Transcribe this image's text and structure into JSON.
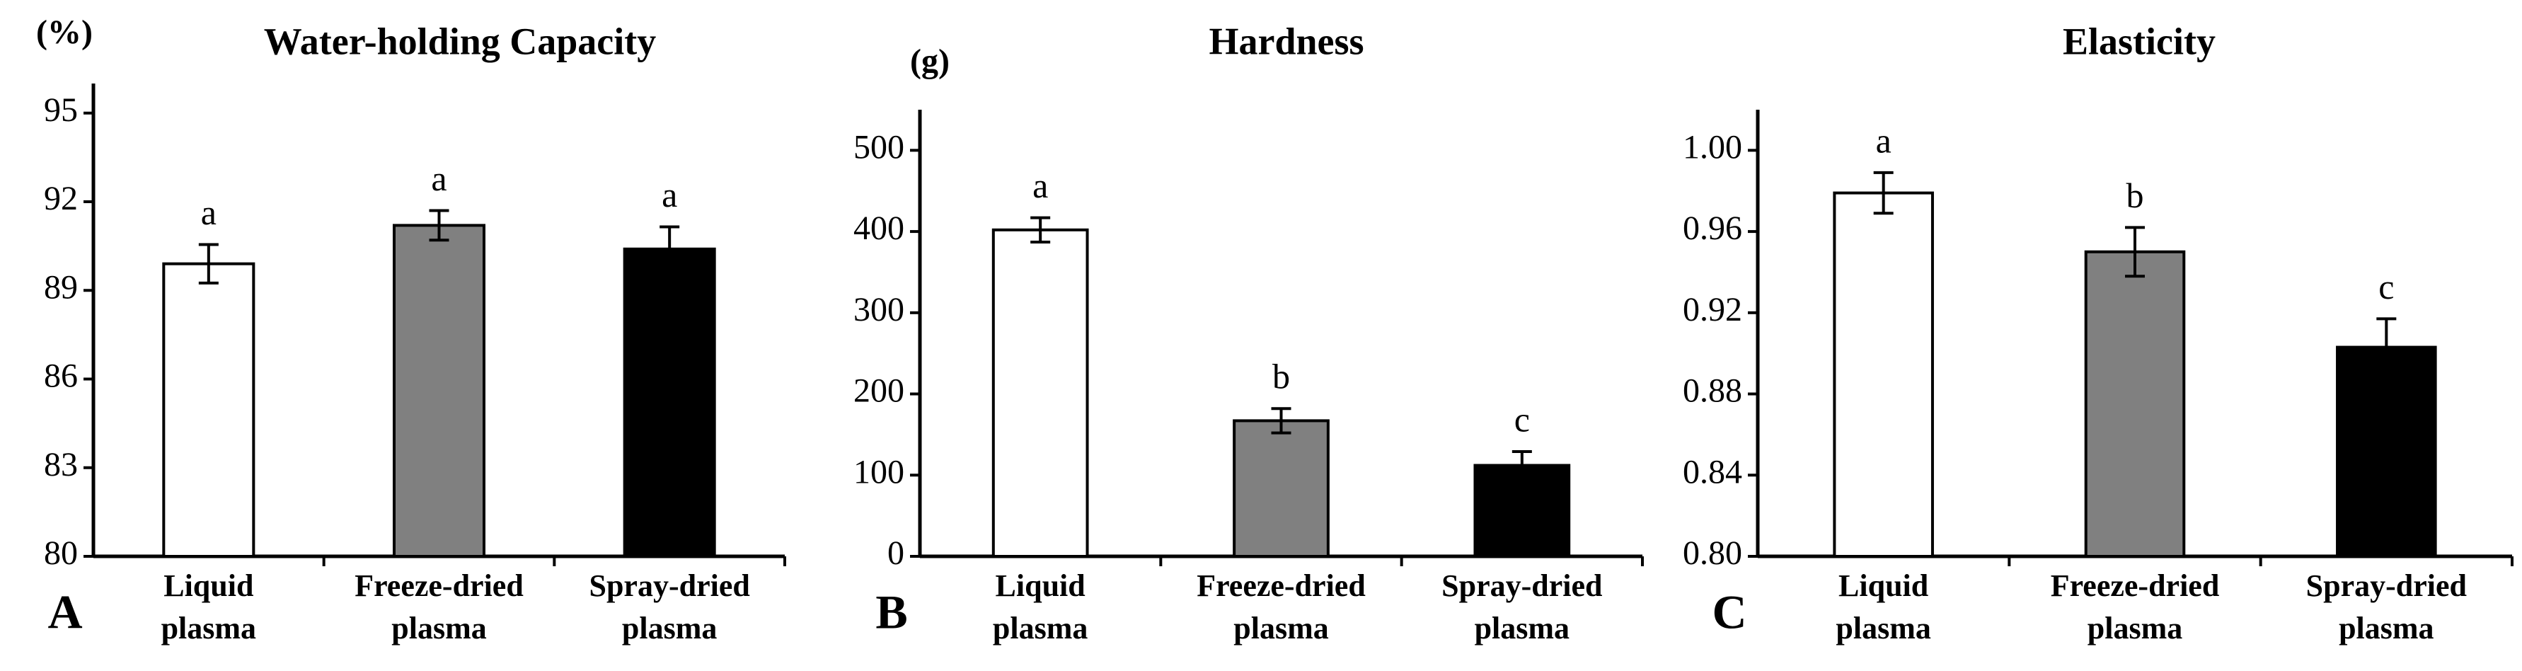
{
  "chart_data": [
    {
      "type": "bar",
      "panel_label": "A",
      "title": "Water-holding Capacity",
      "y_unit": "(%)",
      "categories": [
        "Liquid plasma",
        "Freeze-dried plasma",
        "Spray-dried plasma"
      ],
      "values": [
        89.9,
        91.2,
        90.4
      ],
      "errors": [
        0.65,
        0.5,
        0.75
      ],
      "annotations": [
        "a",
        "a",
        "a"
      ],
      "colors": [
        "#ffffff",
        "#808080",
        "#000000"
      ],
      "ylim": [
        80,
        96
      ],
      "yticks": [
        80,
        83,
        86,
        89,
        92,
        95
      ]
    },
    {
      "type": "bar",
      "panel_label": "B",
      "title": "Hardness",
      "y_unit": "(g)",
      "categories": [
        "Liquid plasma",
        "Freeze-dried plasma",
        "Spray-dried plasma"
      ],
      "values": [
        402,
        167,
        112
      ],
      "errors": [
        15,
        15,
        17
      ],
      "annotations": [
        "a",
        "b",
        "c"
      ],
      "colors": [
        "#ffffff",
        "#808080",
        "#000000"
      ],
      "ylim": [
        0,
        550
      ],
      "yticks": [
        0,
        100,
        200,
        300,
        400,
        500
      ]
    },
    {
      "type": "bar",
      "panel_label": "C",
      "title": "Elasticity",
      "categories": [
        "Liquid plasma",
        "Freeze-dried plasma",
        "Spray-dried plasma"
      ],
      "values": [
        0.979,
        0.95,
        0.903
      ],
      "errors": [
        0.01,
        0.012,
        0.014
      ],
      "annotations": [
        "a",
        "b",
        "c"
      ],
      "colors": [
        "#ffffff",
        "#808080",
        "#000000"
      ],
      "ylim": [
        0.8,
        1.02
      ],
      "yticks": [
        {
          "value": 0.8,
          "label": "0.80"
        },
        0.84,
        0.88,
        0.92,
        0.96,
        {
          "value": 1,
          "label": "1.00"
        }
      ]
    }
  ]
}
